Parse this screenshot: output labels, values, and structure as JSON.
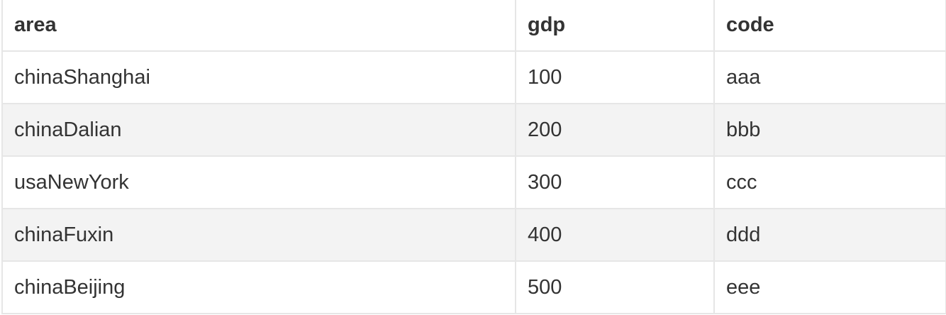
{
  "table": {
    "headers": [
      "area",
      "gdp",
      "code"
    ],
    "rows": [
      [
        "chinaShanghai",
        "100",
        "aaa"
      ],
      [
        "chinaDalian",
        "200",
        "bbb"
      ],
      [
        "usaNewYork",
        "300",
        "ccc"
      ],
      [
        "chinaFuxin",
        "400",
        "ddd"
      ],
      [
        "chinaBeijing",
        "500",
        "eee"
      ]
    ]
  },
  "colors": {
    "text": "#333333",
    "border": "#e6e6e6",
    "stripe": "#f3f3f3",
    "background": "#ffffff"
  }
}
